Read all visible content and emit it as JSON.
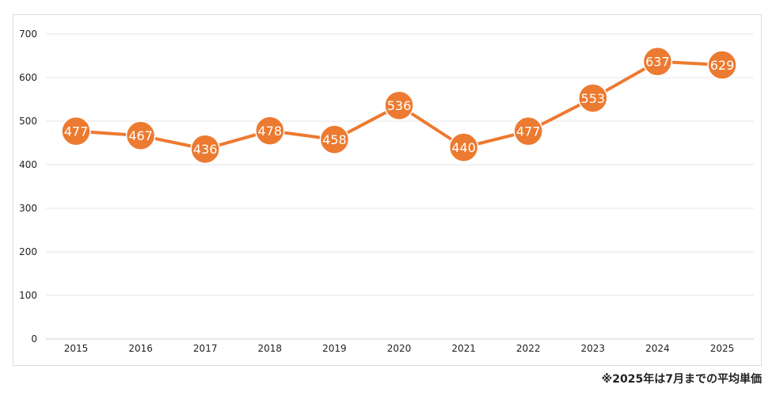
{
  "chart_data": {
    "type": "line",
    "x": [
      "2015",
      "2016",
      "2017",
      "2018",
      "2019",
      "2020",
      "2021",
      "2022",
      "2023",
      "2024",
      "2025"
    ],
    "series": [
      {
        "values": [
          477,
          467,
          436,
          478,
          458,
          536,
          440,
          477,
          553,
          637,
          629
        ]
      }
    ],
    "ylim": [
      0,
      700
    ],
    "yticks": [
      0,
      100,
      200,
      300,
      400,
      500,
      600,
      700
    ],
    "grid": true,
    "legend": "none",
    "data_labels": true,
    "line_color": "#ec7a30",
    "marker_color": "#ec7a30",
    "label_color": "#ffffff"
  },
  "footnote": "※2025年は7月までの平均単価"
}
